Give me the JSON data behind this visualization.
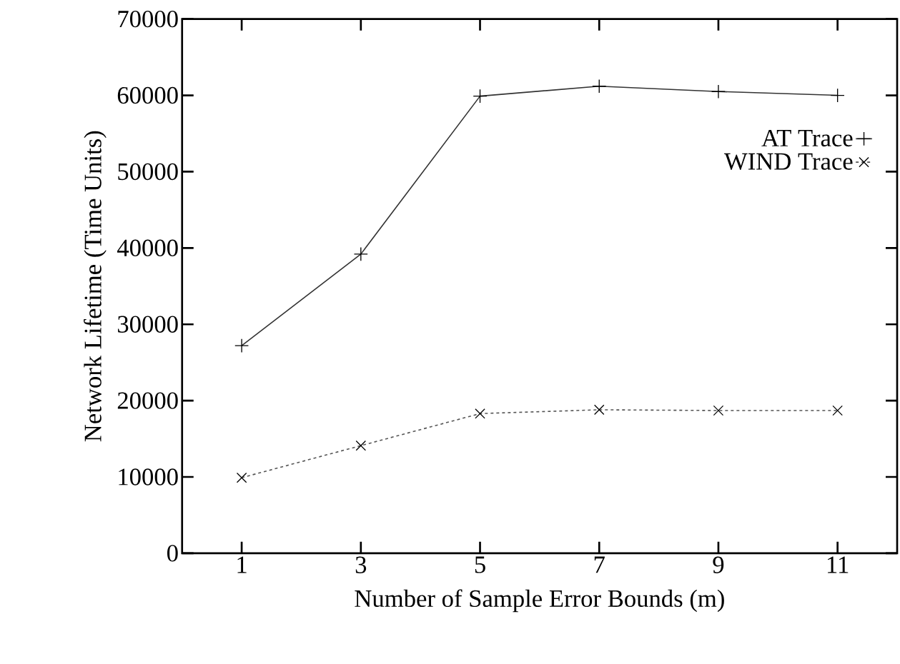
{
  "chart_data": {
    "type": "line",
    "xlabel": "Number of Sample Error Bounds (m)",
    "ylabel": "Network Lifetime (Time Units)",
    "x": [
      1,
      3,
      5,
      7,
      9,
      11
    ],
    "series": [
      {
        "name": "AT Trace",
        "color": "#333333",
        "marker": "cross",
        "line_style": "solid",
        "values": [
          27200,
          39200,
          59900,
          61200,
          60500,
          60000
        ]
      },
      {
        "name": "WIND Trace",
        "color": "#555555",
        "marker": "x",
        "line_style": "dashed",
        "values": [
          9900,
          14100,
          18300,
          18800,
          18700,
          18700
        ]
      }
    ],
    "xlim": [
      0,
      12
    ],
    "ylim": [
      0,
      70000
    ],
    "xticks": [
      1,
      3,
      5,
      7,
      9,
      11
    ],
    "yticks": [
      0,
      10000,
      20000,
      30000,
      40000,
      50000,
      60000,
      70000
    ],
    "grid": false,
    "legend": "top right"
  }
}
